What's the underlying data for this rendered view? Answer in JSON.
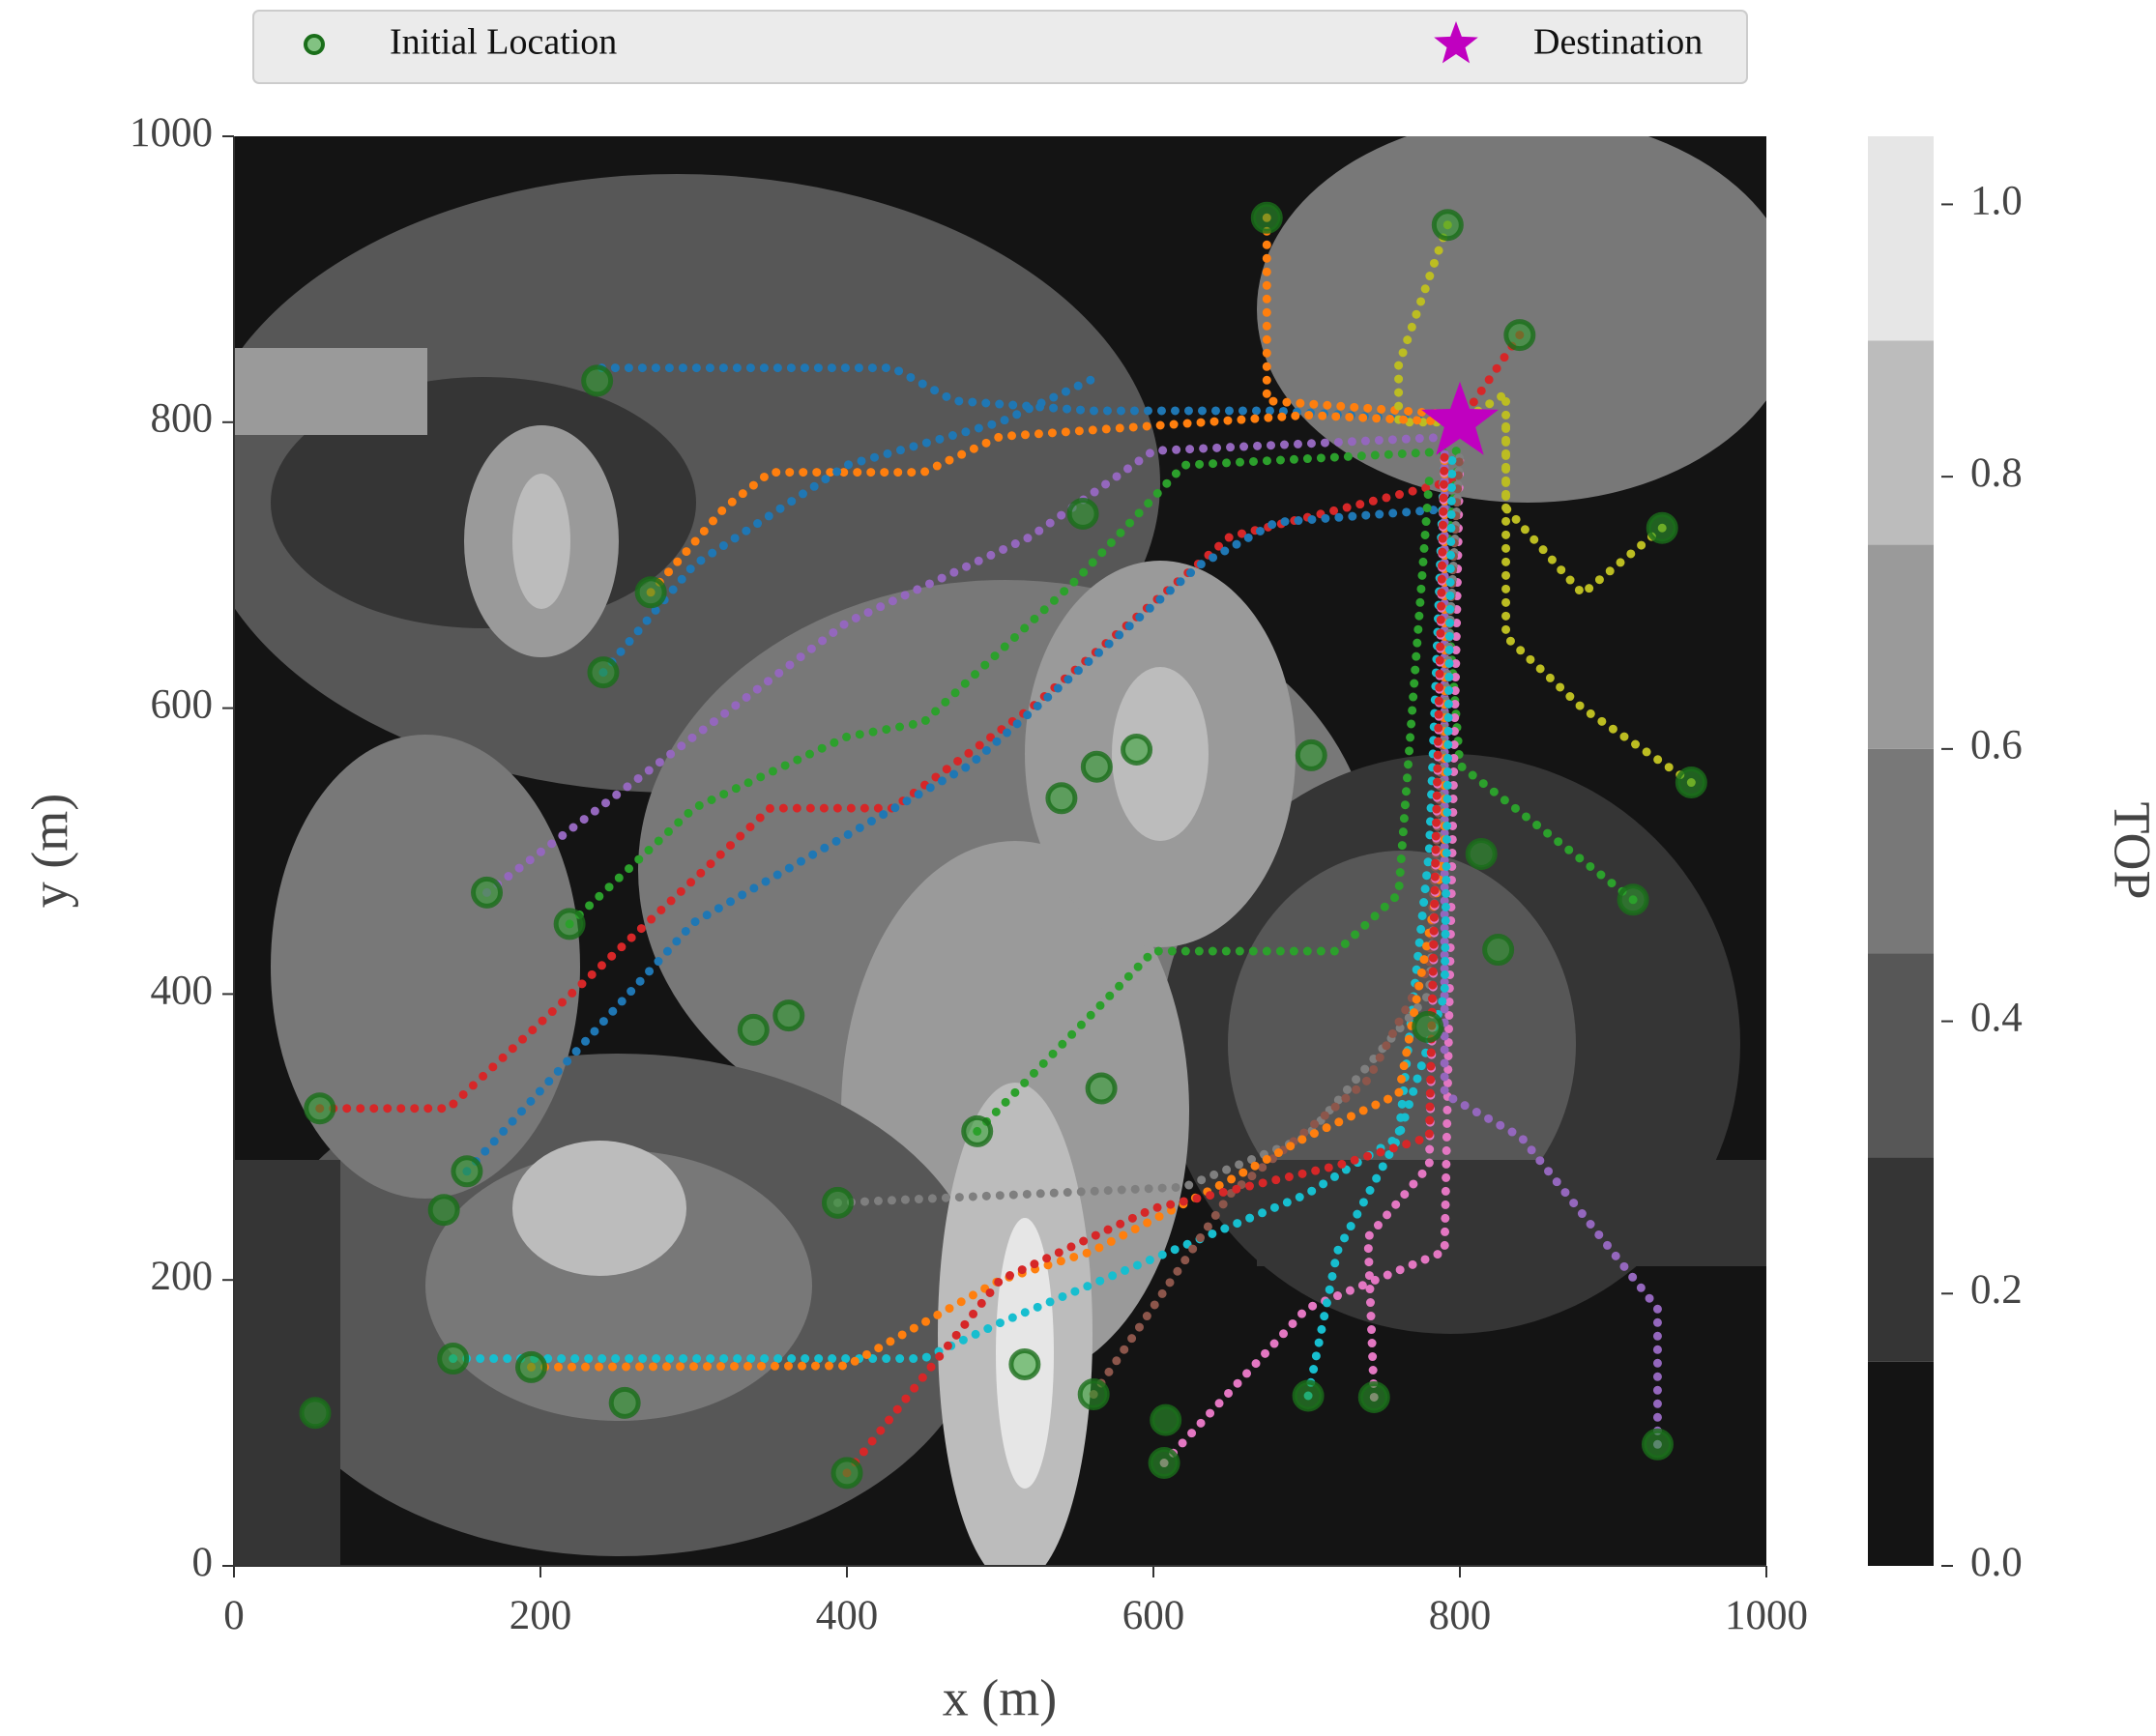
{
  "chart_data": {
    "type": "trajectory",
    "xlabel": "x (m)",
    "ylabel": "y (m)",
    "xlim": [
      0,
      1000
    ],
    "ylim": [
      0,
      1000
    ],
    "xticks": [
      0,
      200,
      400,
      600,
      800,
      1000
    ],
    "yticks": [
      0,
      200,
      400,
      600,
      800,
      1000
    ],
    "legend": {
      "position": "top",
      "initial_label": "Initial Location",
      "destination_label": "Destination"
    },
    "colorbar": {
      "label": "TOP",
      "levels": [
        0,
        0.15,
        0.3,
        0.45,
        0.6,
        0.75,
        0.9,
        1.05
      ],
      "colors": [
        "#141414",
        "#353535",
        "#575757",
        "#787878",
        "#9a9a9a",
        "#bcbcbc",
        "#e6e6e6"
      ],
      "ticks": [
        {
          "value": 0,
          "label": "0.0"
        },
        0.2,
        0.4,
        0.6,
        0.8,
        {
          "value": 1,
          "label": "1.0"
        }
      ]
    },
    "destination": {
      "x": 800,
      "y": 800,
      "color": "#c000c0"
    },
    "initial_color": "#2ca02c",
    "initial_locations": {
      "x": [
        674,
        792,
        839,
        237,
        932,
        272,
        241,
        554,
        951,
        703,
        589,
        563,
        540,
        814,
        913,
        165,
        219,
        825,
        779,
        362,
        339,
        56,
        566,
        485,
        152,
        137,
        394,
        143,
        194,
        255,
        53,
        516,
        561,
        608,
        607,
        701,
        744,
        400,
        929
      ],
      "y": [
        943,
        938,
        861,
        829,
        726,
        681,
        625,
        736,
        548,
        567,
        571,
        559,
        537,
        498,
        466,
        471,
        449,
        431,
        377,
        385,
        375,
        320,
        334,
        304,
        276,
        249,
        254,
        145,
        139,
        114,
        107,
        141,
        120,
        102,
        72,
        119,
        118,
        65,
        85
      ]
    },
    "trajectories": [
      {
        "color": "#1f77b4",
        "x": [
          240,
          430,
          470,
          560,
          680,
          800
        ],
        "y": [
          838,
          838,
          815,
          808,
          808,
          800
        ]
      },
      {
        "color": "#ff7f0e",
        "x": [
          674,
          674,
          800
        ],
        "y": [
          943,
          815,
          805
        ]
      },
      {
        "color": "#bcbd22",
        "x": [
          792,
          760,
          760,
          800
        ],
        "y": [
          938,
          840,
          800,
          800
        ]
      },
      {
        "color": "#d62728",
        "x": [
          839,
          800
        ],
        "y": [
          861,
          800
        ]
      },
      {
        "color": "#bcbd22",
        "x": [
          932,
          880,
          830,
          830,
          800
        ],
        "y": [
          726,
          680,
          740,
          820,
          800
        ]
      },
      {
        "color": "#ff7f0e",
        "x": [
          272,
          320,
          350,
          450,
          500,
          700,
          800
        ],
        "y": [
          681,
          740,
          765,
          765,
          790,
          805,
          800
        ]
      },
      {
        "color": "#1f77b4",
        "x": [
          241,
          300,
          400,
          500,
          560
        ],
        "y": [
          625,
          700,
          770,
          800,
          830
        ]
      },
      {
        "color": "#9467bd",
        "x": [
          165,
          300,
          400,
          520,
          600,
          800
        ],
        "y": [
          471,
          580,
          660,
          720,
          780,
          790
        ]
      },
      {
        "color": "#2ca02c",
        "x": [
          219,
          300,
          400,
          450,
          550,
          620,
          800
        ],
        "y": [
          449,
          530,
          580,
          590,
          690,
          770,
          780
        ]
      },
      {
        "color": "#d62728",
        "x": [
          56,
          140,
          240,
          350,
          430,
          520,
          650,
          800
        ],
        "y": [
          320,
          320,
          420,
          530,
          530,
          600,
          720,
          760
        ]
      },
      {
        "color": "#1f77b4",
        "x": [
          152,
          300,
          480,
          630,
          680,
          800
        ],
        "y": [
          276,
          450,
          560,
          700,
          730,
          740
        ]
      },
      {
        "color": "#bcbd22",
        "x": [
          951,
          880,
          830,
          830
        ],
        "y": [
          548,
          600,
          650,
          800
        ]
      },
      {
        "color": "#2ca02c",
        "x": [
          913,
          800,
          790,
          800
        ],
        "y": [
          466,
          560,
          700,
          780
        ]
      },
      {
        "color": "#17becf",
        "x": [
          143,
          450,
          500,
          700,
          760,
          780,
          790
        ],
        "y": [
          145,
          145,
          170,
          260,
          300,
          500,
          780
        ]
      },
      {
        "color": "#e377c2",
        "x": [
          607,
          700,
          790,
          800
        ],
        "y": [
          72,
          180,
          220,
          780
        ]
      },
      {
        "color": "#9467bd",
        "x": [
          929,
          929,
          840,
          790,
          790
        ],
        "y": [
          85,
          180,
          300,
          330,
          780
        ]
      },
      {
        "color": "#7f7f7f",
        "x": [
          394,
          620,
          700,
          780,
          800
        ],
        "y": [
          254,
          265,
          300,
          400,
          780
        ]
      },
      {
        "color": "#8c564b",
        "x": [
          561,
          650,
          740,
          780,
          800
        ],
        "y": [
          120,
          260,
          340,
          420,
          780
        ]
      },
      {
        "color": "#2ca02c",
        "x": [
          485,
          600,
          720,
          760,
          780
        ],
        "y": [
          304,
          430,
          430,
          470,
          760
        ]
      },
      {
        "color": "#ff7f0e",
        "x": [
          194,
          400,
          500,
          560,
          650,
          700,
          760,
          790,
          790
        ],
        "y": [
          139,
          140,
          200,
          220,
          270,
          300,
          330,
          500,
          780
        ]
      },
      {
        "color": "#17becf",
        "x": [
          701,
          720,
          760,
          790,
          795
        ],
        "y": [
          119,
          220,
          300,
          400,
          780
        ]
      },
      {
        "color": "#e377c2",
        "x": [
          744,
          740,
          780,
          790
        ],
        "y": [
          118,
          230,
          280,
          780
        ]
      },
      {
        "color": "#d62728",
        "x": [
          400,
          500,
          600,
          720,
          780,
          790
        ],
        "y": [
          65,
          200,
          250,
          280,
          300,
          780
        ]
      }
    ]
  }
}
